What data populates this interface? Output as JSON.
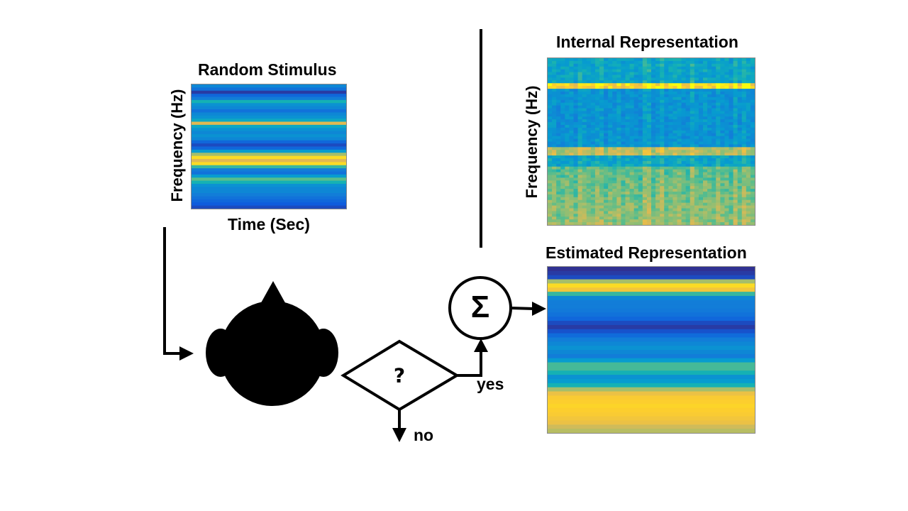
{
  "random_stimulus": {
    "title": "Random Stimulus",
    "ylabel": "Frequency (Hz)",
    "xlabel": "Time (Sec)",
    "rows": [
      0.35,
      0.25,
      0.05,
      0.2,
      0.3,
      0.55,
      0.4,
      0.35,
      0.25,
      0.35,
      0.4,
      0.5,
      0.85,
      0.5,
      0.4,
      0.35,
      0.4,
      0.35,
      0.2,
      0.1,
      0.2,
      0.45,
      0.75,
      0.95,
      0.85,
      0.95,
      0.6,
      0.3,
      0.25,
      0.45,
      0.65,
      0.55,
      0.4,
      0.35,
      0.35,
      0.3,
      0.25,
      0.2,
      0.15,
      0.1
    ]
  },
  "internal_representation": {
    "title": "Internal Representation",
    "ylabel": "Frequency (Hz)"
  },
  "estimated_representation": {
    "title": "Estimated Representation",
    "rows": [
      0.02,
      0.05,
      0.1,
      0.75,
      0.95,
      0.9,
      0.6,
      0.35,
      0.3,
      0.3,
      0.28,
      0.25,
      0.2,
      0.1,
      0.05,
      0.12,
      0.22,
      0.3,
      0.35,
      0.4,
      0.35,
      0.3,
      0.45,
      0.62,
      0.62,
      0.55,
      0.4,
      0.45,
      0.55,
      0.75,
      0.88,
      0.92,
      0.93,
      0.94,
      0.93,
      0.92,
      0.9,
      0.88,
      0.82,
      0.78
    ]
  },
  "flow": {
    "sum_symbol": "Σ",
    "decision_symbol": "?",
    "yes_label": "yes",
    "no_label": "no"
  },
  "colors": {
    "stroke": "#000000",
    "panel_border": "#8a8a8a"
  }
}
